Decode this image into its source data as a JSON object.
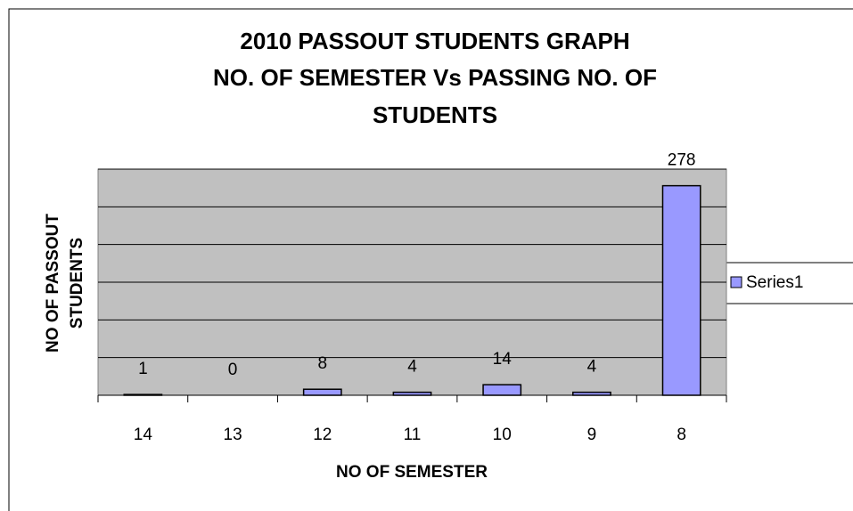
{
  "chart_data": {
    "type": "bar",
    "title": [
      "2010 PASSOUT STUDENTS GRAPH",
      "NO.  OF SEMESTER Vs PASSING NO. OF",
      "STUDENTS"
    ],
    "x_label": "NO OF SEMESTER",
    "y_label": [
      "NO OF PASSOUT",
      "STUDENTS"
    ],
    "categories": [
      "14",
      "13",
      "12",
      "11",
      "10",
      "9",
      "8"
    ],
    "series": [
      {
        "name": "Series1",
        "color": "#9999ff",
        "values": [
          1,
          0,
          8,
          4,
          14,
          4,
          278
        ]
      }
    ],
    "ylim": [
      0,
      300
    ],
    "yticks": [
      0,
      50,
      100,
      150,
      200,
      250,
      300
    ],
    "grid": true,
    "legend": "right",
    "plot_background": "#c0c0c0"
  }
}
